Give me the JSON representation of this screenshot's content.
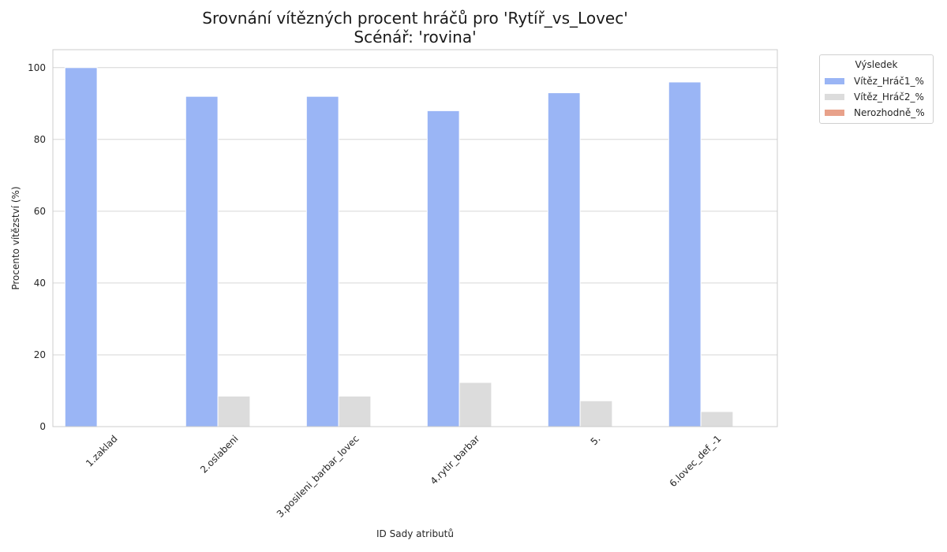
{
  "chart_data": {
    "type": "bar",
    "title": "Srovnání vítězných procent hráčů pro 'Rytíř_vs_Lovec'",
    "subtitle": "Scénář: 'rovina'",
    "xlabel": "ID Sady atributů",
    "ylabel": "Procento vítězství (%)",
    "categories": [
      "1.zaklad",
      "2.oslabeni",
      "3.posileni_barbar_lovec",
      "4.rytir_barbar",
      "5.",
      "6.lovec_def_-1"
    ],
    "series": [
      {
        "name": "Vítěz_Hráč1_%",
        "color": "#9ab5f5",
        "values": [
          100,
          92,
          92,
          88,
          93,
          96
        ]
      },
      {
        "name": "Vítěz_Hráč2_%",
        "color": "#dcdcdc",
        "values": [
          0,
          8.5,
          8.5,
          12.3,
          7.2,
          4.2
        ]
      },
      {
        "name": "Nerozhodně_%",
        "color": "#e8a18a",
        "values": [
          0,
          0,
          0,
          0,
          0,
          0
        ]
      }
    ],
    "ylim": [
      0,
      105
    ],
    "yticks": [
      0,
      20,
      40,
      60,
      80,
      100
    ],
    "grid": true,
    "legend": {
      "title": "Výsledek",
      "position": "outside-top-right"
    }
  }
}
